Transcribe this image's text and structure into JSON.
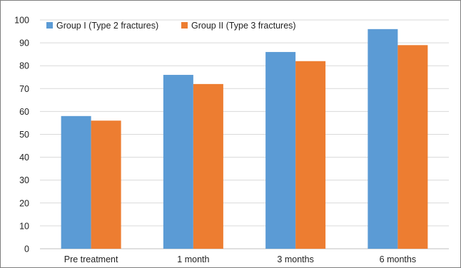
{
  "chart_data": {
    "type": "bar",
    "title": "",
    "xlabel": "",
    "ylabel": "",
    "categories": [
      "Pre treatment",
      "1 month",
      "3 months",
      "6 months"
    ],
    "series": [
      {
        "name": "Group I (Type 2 fractures)",
        "values": [
          58,
          76,
          86,
          96
        ],
        "color": "#5b9bd5"
      },
      {
        "name": "Group II (Type 3 fractures)",
        "values": [
          56,
          72,
          82,
          89
        ],
        "color": "#ed7d31"
      }
    ],
    "ylim": [
      0,
      100
    ],
    "yticks": [
      "0",
      "10",
      "20",
      "30",
      "40",
      "50",
      "60",
      "70",
      "80",
      "90",
      "100"
    ],
    "grid": true,
    "legend_position": "top-left"
  }
}
